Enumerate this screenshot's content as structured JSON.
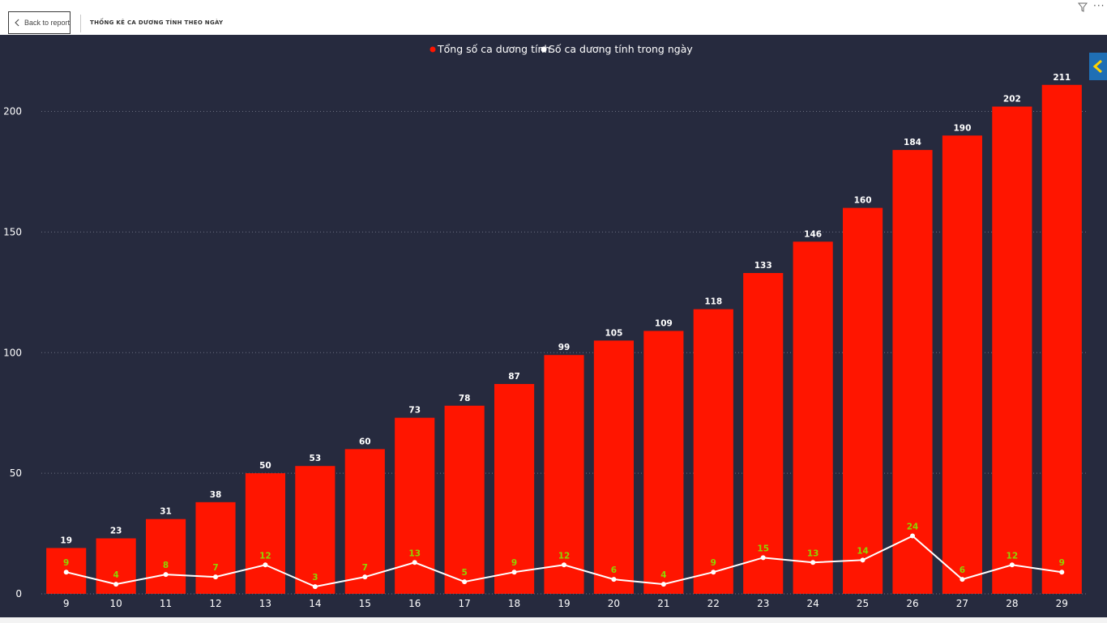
{
  "header": {
    "back_label": "Back to report",
    "page_title": "THỐNG KÊ CA DƯƠNG TÍNH THEO NGÀY"
  },
  "icons": {
    "back": "chevron-left-icon",
    "filter": "filter-icon",
    "more": "more-options-icon",
    "toggle": "chevron-left-icon"
  },
  "colors": {
    "panel_bg": "#262a3e",
    "bar": "#ff1500",
    "line": "#ffffff",
    "bar_label": "#ffffff",
    "line_label": "#8fd400",
    "axis_text": "#ffffff",
    "grid": "#6b6f80",
    "toggle": "#1f6fb5",
    "toggle_chevron": "#ffd400"
  },
  "chart_data": {
    "type": "bar",
    "categories": [
      "9",
      "10",
      "11",
      "12",
      "13",
      "14",
      "15",
      "16",
      "17",
      "18",
      "19",
      "20",
      "21",
      "22",
      "23",
      "24",
      "25",
      "26",
      "27",
      "28",
      "29"
    ],
    "series": [
      {
        "name": "Tổng số ca dương tính",
        "kind": "bar",
        "values": [
          19,
          23,
          31,
          38,
          50,
          53,
          60,
          73,
          78,
          87,
          99,
          105,
          109,
          118,
          133,
          146,
          160,
          184,
          190,
          202,
          211
        ]
      },
      {
        "name": "Số ca dương tính trong ngày",
        "kind": "line",
        "values": [
          9,
          4,
          8,
          7,
          12,
          3,
          7,
          13,
          5,
          9,
          12,
          6,
          4,
          9,
          15,
          13,
          14,
          24,
          6,
          12,
          9
        ]
      }
    ],
    "title": "",
    "xlabel": "",
    "ylabel": "",
    "ylim": [
      0,
      222
    ],
    "yticks": [
      0,
      50,
      100,
      150,
      200
    ],
    "grid": true,
    "legend_position": "top-center",
    "data_labels": true
  }
}
